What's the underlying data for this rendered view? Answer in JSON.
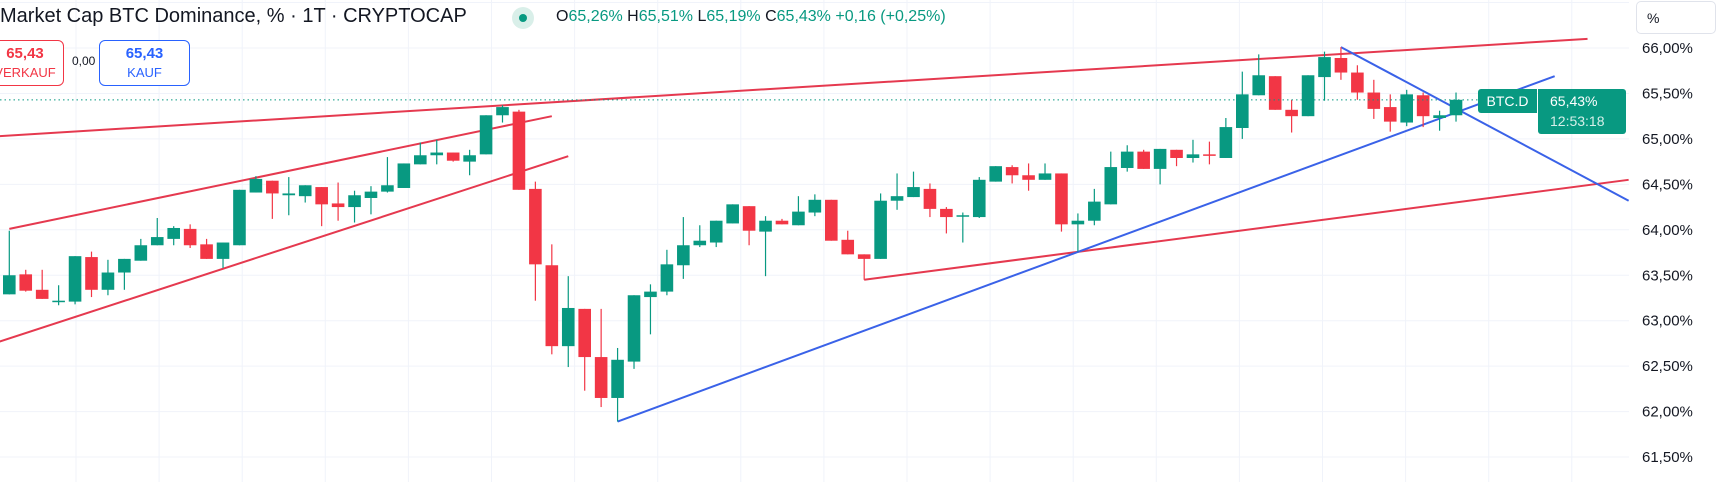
{
  "header": {
    "title": "Market Cap BTC Dominance, % · 1T · CRYPTOCAP",
    "ohlc": {
      "o_key": "O",
      "o": "65,26%",
      "h_key": "H",
      "h": "65,51%",
      "l_key": "L",
      "l": "65,19%",
      "c_key": "C",
      "c": "65,43%",
      "change": "+0,16 (+0,25%)"
    }
  },
  "trade": {
    "sell_price": "65,43",
    "sell_label": "VERKAUF",
    "spread": "0,00",
    "buy_price": "65,43",
    "buy_label": "KAUF"
  },
  "price_axis": {
    "unit": "%"
  },
  "last_price": {
    "symbol": "BTC.D",
    "value": "65,43%",
    "countdown": "12:53:18"
  },
  "colors": {
    "up": "#089981",
    "down": "#f23645",
    "trend_red": "#e5394f",
    "trend_blue": "#3a62e8",
    "grid": "#f0f3fa"
  },
  "chart_data": {
    "type": "candlestick",
    "ylim": [
      61.3,
      66.5
    ],
    "yticks": [
      61.5,
      62.0,
      62.5,
      63.0,
      63.5,
      64.0,
      64.5,
      65.0,
      65.5,
      66.0
    ],
    "ytick_labels": [
      "61,50%",
      "62,00%",
      "62,50%",
      "63,00%",
      "63,50%",
      "64,00%",
      "64,50%",
      "65,00%",
      "65,50%",
      "66,00%"
    ],
    "grid": true,
    "last_close": 65.43,
    "candles_ohlc": [
      [
        63.29,
        63.99,
        63.29,
        63.5
      ],
      [
        63.51,
        63.56,
        63.32,
        63.33
      ],
      [
        63.34,
        63.56,
        63.24,
        63.24
      ],
      [
        63.21,
        63.39,
        63.17,
        63.22
      ],
      [
        63.21,
        63.71,
        63.18,
        63.71
      ],
      [
        63.7,
        63.76,
        63.26,
        63.34
      ],
      [
        63.34,
        63.67,
        63.28,
        63.53
      ],
      [
        63.53,
        63.68,
        63.34,
        63.68
      ],
      [
        63.66,
        63.9,
        63.66,
        63.83
      ],
      [
        63.83,
        64.13,
        63.83,
        63.92
      ],
      [
        63.9,
        64.04,
        63.83,
        64.02
      ],
      [
        64.01,
        64.06,
        63.8,
        63.83
      ],
      [
        63.84,
        63.9,
        63.68,
        63.68
      ],
      [
        63.68,
        63.86,
        63.58,
        63.86
      ],
      [
        63.83,
        64.44,
        63.83,
        64.44
      ],
      [
        64.41,
        64.59,
        64.41,
        64.56
      ],
      [
        64.54,
        64.54,
        64.12,
        64.4
      ],
      [
        64.38,
        64.58,
        64.16,
        64.4
      ],
      [
        64.37,
        64.49,
        64.3,
        64.49
      ],
      [
        64.47,
        64.47,
        64.04,
        64.28
      ],
      [
        64.29,
        64.52,
        64.1,
        64.25
      ],
      [
        64.25,
        64.43,
        64.08,
        64.38
      ],
      [
        64.35,
        64.48,
        64.17,
        64.42
      ],
      [
        64.42,
        64.8,
        64.41,
        64.49
      ],
      [
        64.46,
        64.73,
        64.46,
        64.73
      ],
      [
        64.72,
        64.96,
        64.72,
        64.82
      ],
      [
        64.82,
        64.99,
        64.72,
        64.85
      ],
      [
        64.85,
        64.85,
        64.75,
        64.76
      ],
      [
        64.75,
        64.88,
        64.6,
        64.82
      ],
      [
        64.83,
        65.26,
        64.83,
        65.26
      ],
      [
        65.26,
        65.37,
        65.18,
        65.35
      ],
      [
        65.3,
        65.32,
        64.44,
        64.44
      ],
      [
        64.45,
        64.53,
        63.22,
        63.62
      ],
      [
        63.61,
        63.84,
        62.63,
        62.72
      ],
      [
        62.72,
        63.49,
        62.49,
        63.14
      ],
      [
        63.13,
        63.13,
        62.23,
        62.6
      ],
      [
        62.6,
        63.13,
        62.05,
        62.15
      ],
      [
        62.15,
        62.7,
        61.89,
        62.57
      ],
      [
        62.55,
        63.28,
        62.47,
        63.28
      ],
      [
        63.26,
        63.4,
        62.85,
        63.32
      ],
      [
        63.32,
        63.78,
        63.28,
        63.62
      ],
      [
        63.61,
        64.14,
        63.46,
        63.83
      ],
      [
        63.83,
        64.05,
        63.81,
        63.88
      ],
      [
        63.86,
        64.1,
        63.81,
        64.1
      ],
      [
        64.07,
        64.28,
        64.07,
        64.28
      ],
      [
        64.26,
        64.26,
        63.83,
        63.99
      ],
      [
        63.98,
        64.15,
        63.49,
        64.1
      ],
      [
        64.1,
        64.12,
        64.06,
        64.06
      ],
      [
        64.05,
        64.37,
        64.05,
        64.2
      ],
      [
        64.19,
        64.39,
        64.15,
        64.33
      ],
      [
        64.33,
        64.33,
        63.88,
        63.88
      ],
      [
        63.89,
        63.99,
        63.73,
        63.73
      ],
      [
        63.73,
        63.73,
        63.45,
        63.68
      ],
      [
        63.68,
        64.4,
        63.68,
        64.32
      ],
      [
        64.32,
        64.62,
        64.22,
        64.37
      ],
      [
        64.36,
        64.64,
        64.36,
        64.47
      ],
      [
        64.45,
        64.51,
        64.14,
        64.23
      ],
      [
        64.23,
        64.25,
        63.96,
        64.14
      ],
      [
        64.15,
        64.19,
        63.86,
        64.16
      ],
      [
        64.14,
        64.58,
        64.13,
        64.55
      ],
      [
        64.53,
        64.7,
        64.53,
        64.7
      ],
      [
        64.69,
        64.71,
        64.51,
        64.6
      ],
      [
        64.6,
        64.73,
        64.43,
        64.55
      ],
      [
        64.55,
        64.73,
        64.55,
        64.62
      ],
      [
        64.62,
        64.62,
        63.98,
        64.06
      ],
      [
        64.06,
        64.18,
        63.76,
        64.1
      ],
      [
        64.1,
        64.45,
        64.05,
        64.31
      ],
      [
        64.28,
        64.86,
        64.28,
        64.69
      ],
      [
        64.68,
        64.93,
        64.64,
        64.86
      ],
      [
        64.86,
        64.88,
        64.67,
        64.67
      ],
      [
        64.67,
        64.89,
        64.5,
        64.89
      ],
      [
        64.88,
        64.88,
        64.7,
        64.79
      ],
      [
        64.79,
        64.99,
        64.74,
        64.83
      ],
      [
        64.83,
        64.97,
        64.72,
        64.82
      ],
      [
        64.79,
        65.23,
        64.79,
        65.13
      ],
      [
        65.12,
        65.74,
        65.0,
        65.49
      ],
      [
        65.48,
        65.93,
        65.48,
        65.7
      ],
      [
        65.69,
        65.69,
        65.32,
        65.32
      ],
      [
        65.32,
        65.43,
        65.07,
        65.25
      ],
      [
        65.25,
        65.7,
        65.25,
        65.7
      ],
      [
        65.68,
        65.96,
        65.42,
        65.9
      ],
      [
        65.89,
        66.01,
        65.65,
        65.73
      ],
      [
        65.73,
        65.81,
        65.43,
        65.51
      ],
      [
        65.51,
        65.65,
        65.22,
        65.33
      ],
      [
        65.35,
        65.49,
        65.08,
        65.19
      ],
      [
        65.18,
        65.54,
        65.14,
        65.49
      ],
      [
        65.48,
        65.51,
        65.13,
        65.25
      ],
      [
        65.23,
        65.31,
        65.09,
        65.26
      ],
      [
        65.26,
        65.51,
        65.19,
        65.43
      ]
    ],
    "trendlines": [
      {
        "color": "red",
        "from": [
          -0.6,
          65.03
        ],
        "to": [
          96.0,
          66.1
        ]
      },
      {
        "color": "red",
        "from": [
          0,
          64.01
        ],
        "to": [
          33.0,
          65.25
        ]
      },
      {
        "color": "red",
        "from": [
          -0.6,
          62.77
        ],
        "to": [
          34.0,
          64.81
        ]
      },
      {
        "color": "red",
        "from": [
          52,
          63.45
        ],
        "to": [
          98.5,
          64.55
        ]
      },
      {
        "color": "blue",
        "from": [
          37,
          61.89
        ],
        "to": [
          94.0,
          65.69
        ]
      },
      {
        "color": "blue",
        "from": [
          81.0,
          66.01
        ],
        "to": [
          98.5,
          64.32
        ]
      }
    ]
  }
}
